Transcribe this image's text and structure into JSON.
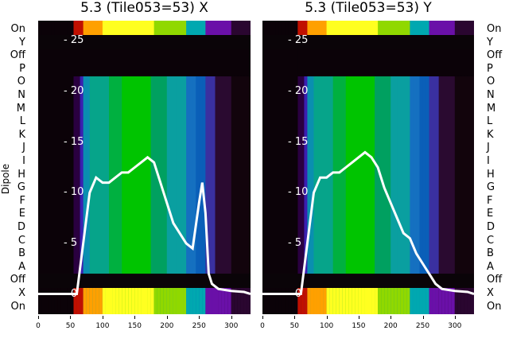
{
  "panels": [
    {
      "title": "5.3 (Tile053=53) X"
    },
    {
      "title": "5.3 (Tile053=53) Y"
    }
  ],
  "y_axis_title": "Dipole",
  "row_labels": [
    "On",
    "Y",
    "Off",
    "P",
    "O",
    "N",
    "M",
    "L",
    "K",
    "J",
    "I",
    "H",
    "G",
    "F",
    "E",
    "D",
    "C",
    "B",
    "A",
    "Off",
    "X",
    "On"
  ],
  "x_ticks": [
    "0",
    "50",
    "100",
    "150",
    "200",
    "250",
    "300"
  ],
  "inner_ticks": [
    "25",
    "20",
    "15",
    "10",
    "5",
    "0"
  ],
  "chart_data": [
    {
      "type": "heatmap",
      "title": "5.3 (Tile053=53) X",
      "xlim": [
        0,
        330
      ],
      "ylim": [
        -2,
        27
      ],
      "overlay_line": {
        "x": [
          0,
          60,
          70,
          80,
          90,
          100,
          110,
          120,
          130,
          140,
          150,
          160,
          170,
          180,
          190,
          200,
          210,
          220,
          230,
          240,
          250,
          255,
          260,
          265,
          270,
          280,
          300,
          320,
          330
        ],
        "y": [
          0,
          0,
          5,
          10,
          11.5,
          11,
          11,
          11.5,
          12,
          12,
          12.5,
          13,
          13.5,
          13,
          11,
          9,
          7,
          6,
          5,
          4.5,
          9,
          11,
          8,
          2,
          1,
          0.5,
          0.3,
          0.2,
          0
        ]
      }
    },
    {
      "type": "heatmap",
      "title": "5.3 (Tile053=53) Y",
      "xlim": [
        0,
        330
      ],
      "ylim": [
        -2,
        27
      ],
      "overlay_line": {
        "x": [
          0,
          60,
          70,
          80,
          90,
          100,
          110,
          120,
          130,
          140,
          150,
          160,
          170,
          180,
          190,
          200,
          210,
          220,
          230,
          240,
          250,
          255,
          260,
          265,
          270,
          280,
          300,
          320,
          330
        ],
        "y": [
          0,
          0,
          5,
          10,
          11.5,
          11.5,
          12,
          12,
          12.5,
          13,
          13.5,
          14,
          13.5,
          12.5,
          10.5,
          9,
          7.5,
          6,
          5.5,
          4,
          3,
          2.5,
          2,
          1.5,
          1,
          0.5,
          0.3,
          0.2,
          0
        ]
      }
    }
  ]
}
